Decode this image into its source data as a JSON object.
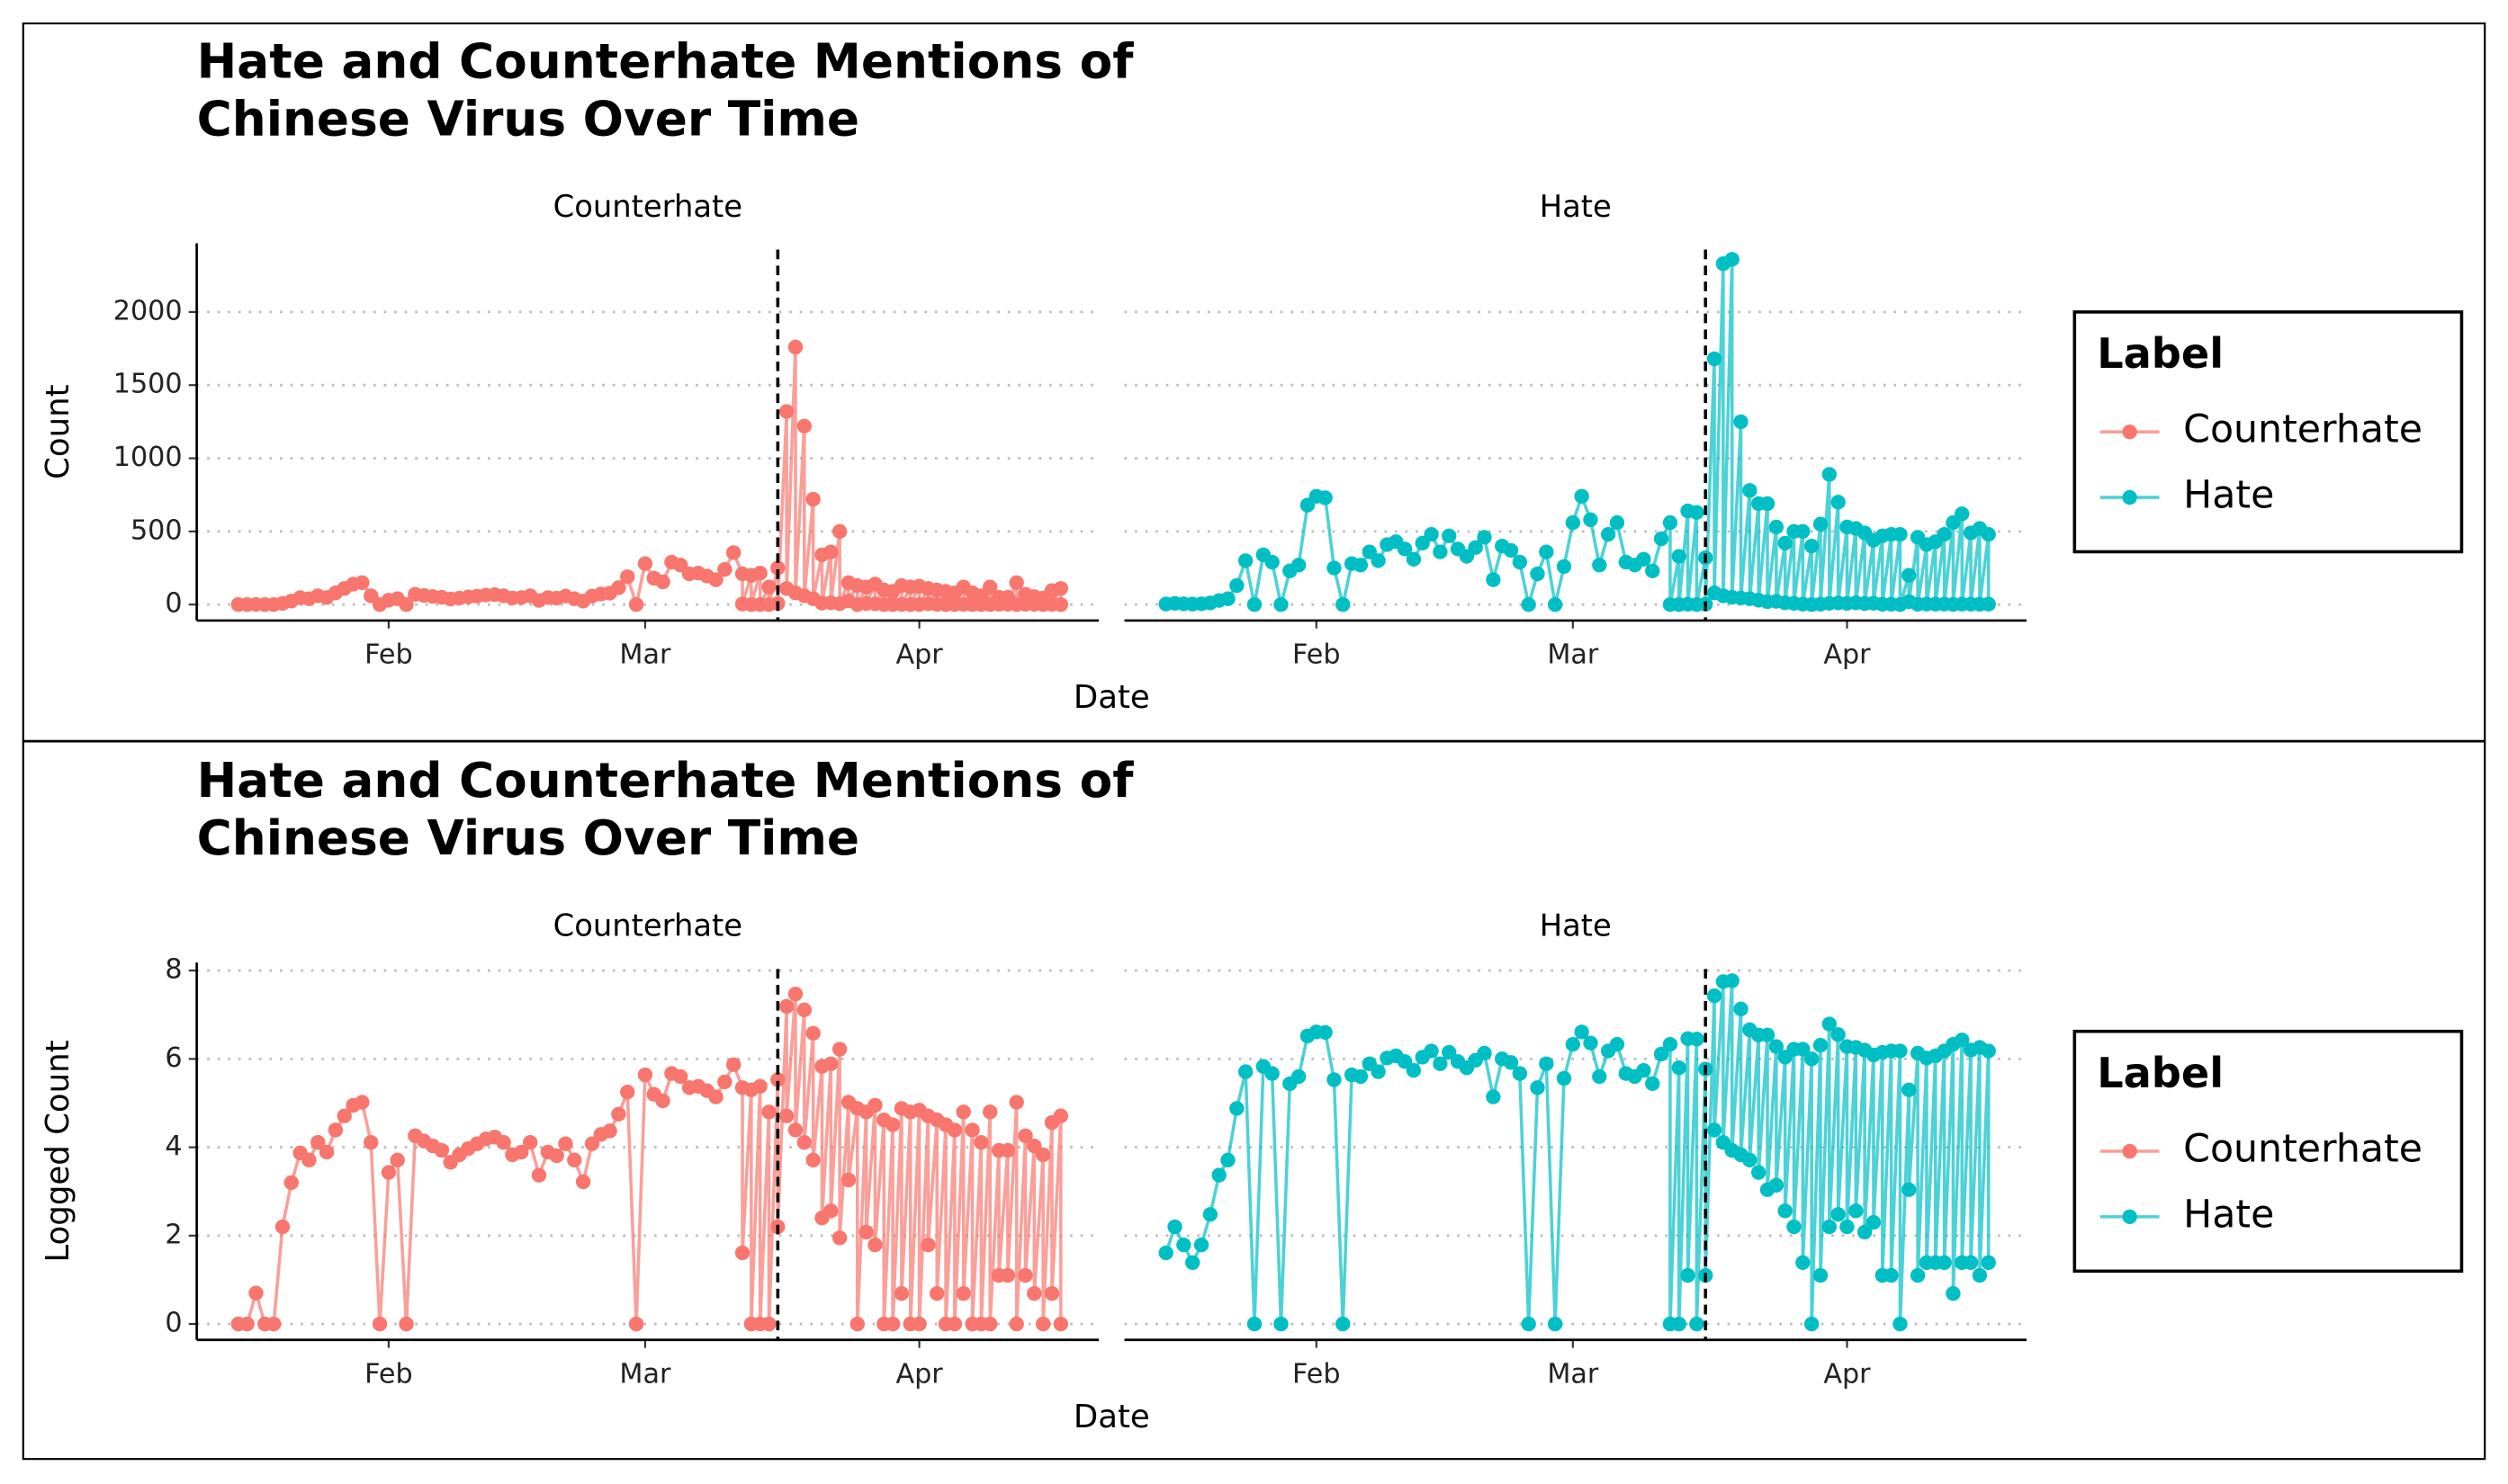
{
  "chart_data": [
    {
      "type": "line",
      "title": "Hate and Counterhate Mentions of\nChinese Virus Over Time",
      "xlabel": "Date",
      "ylabel": "Count",
      "legend_title": "Label",
      "legend": "right",
      "grid": true,
      "facet": true,
      "x": [
        15,
        16,
        17,
        18,
        19,
        20,
        21,
        22,
        23,
        24,
        25,
        26,
        27,
        28,
        29,
        30,
        31,
        32,
        33,
        34,
        35,
        36,
        37,
        38,
        39,
        40,
        41,
        42,
        43,
        44,
        45,
        46,
        47,
        48,
        49,
        50,
        51,
        52,
        53,
        54,
        55,
        56,
        57,
        58,
        59,
        60,
        61,
        62,
        63,
        64,
        65,
        66,
        67,
        68,
        69,
        70,
        71,
        72,
        72,
        73,
        73,
        74,
        74,
        75,
        75,
        76,
        76,
        77,
        77,
        78,
        78,
        79,
        79,
        80,
        80,
        81,
        81,
        82,
        82,
        83,
        83,
        84,
        84,
        85,
        85,
        86,
        86,
        87,
        87,
        88,
        88,
        89,
        89,
        90,
        90,
        91,
        91,
        92,
        92,
        93,
        93,
        94,
        94,
        95,
        95,
        96,
        96,
        97,
        97,
        98,
        98,
        99,
        99,
        100,
        100,
        101,
        101,
        102,
        102,
        103,
        103,
        104,
        104,
        105,
        105,
        106,
        106,
        107,
        107,
        108,
        108
      ],
      "series": [
        {
          "name": "Counterhate",
          "color": "#F8766D",
          "values": [
            0,
            0,
            1,
            0,
            0,
            8,
            24,
            47,
            40,
            60,
            48,
            80,
            110,
            140,
            150,
            60,
            0,
            30,
            40,
            0,
            70,
            62,
            55,
            50,
            38,
            45,
            52,
            58,
            65,
            68,
            60,
            45,
            48,
            60,
            28,
            48,
            44,
            58,
            40,
            24,
            58,
            72,
            78,
            115,
            190,
            0,
            280,
            180,
            155,
            290,
            270,
            210,
            215,
            195,
            170,
            240,
            355,
            210,
            4,
            200,
            0,
            215,
            0,
            120,
            0,
            250,
            8,
            1320,
            110,
            1760,
            80,
            1220,
            60,
            720,
            40,
            340,
            10,
            360,
            12,
            500,
            6,
            150,
            25,
            130,
            0,
            120,
            7,
            140,
            5,
            100,
            0,
            90,
            0,
            130,
            1,
            120,
            0,
            125,
            0,
            110,
            5,
            100,
            1,
            90,
            0,
            80,
            0,
            120,
            1,
            80,
            0,
            60,
            0,
            120,
            0,
            50,
            2,
            50,
            2,
            150,
            0,
            70,
            2,
            55,
            1,
            45,
            0,
            95,
            1,
            110,
            0
          ]
        },
        {
          "name": "Hate",
          "color": "#00BFC4",
          "values": [
            4,
            8,
            5,
            3,
            5,
            11,
            28,
            40,
            130,
            300,
            0,
            340,
            290,
            0,
            230,
            270,
            680,
            740,
            730,
            250,
            0,
            280,
            270,
            360,
            300,
            410,
            430,
            380,
            310,
            420,
            480,
            360,
            470,
            380,
            330,
            390,
            460,
            170,
            400,
            370,
            290,
            0,
            210,
            360,
            0,
            260,
            560,
            740,
            580,
            270,
            480,
            560,
            290,
            270,
            310,
            230,
            450,
            560,
            0,
            330,
            0,
            640,
            2,
            630,
            0,
            320,
            2,
            1680,
            80,
            2330,
            60,
            2360,
            50,
            1250,
            45,
            780,
            40,
            690,
            30,
            690,
            20,
            530,
            22,
            420,
            12,
            500,
            8,
            500,
            3,
            400,
            0,
            550,
            2,
            890,
            8,
            700,
            11,
            530,
            8,
            520,
            12,
            490,
            7,
            440,
            9,
            470,
            2,
            480,
            2,
            480,
            0,
            200,
            20,
            460,
            2,
            410,
            3,
            430,
            3,
            480,
            3,
            560,
            1,
            620,
            3,
            490,
            3,
            520,
            2,
            480,
            3
          ]
        }
      ],
      "xlim": [
        10.3,
        112.3
      ],
      "xticks": [
        {
          "value": 32,
          "label": "Feb"
        },
        {
          "value": 61,
          "label": "Mar"
        },
        {
          "value": 92,
          "label": "Apr"
        }
      ],
      "ylim": [
        -109,
        2470
      ],
      "yticks": [
        0,
        500,
        1000,
        1500,
        2000
      ],
      "vline": 76
    },
    {
      "type": "line",
      "title": "Hate and Counterhate Mentions of\nChinese Virus Over Time",
      "xlabel": "Date",
      "ylabel": "Logged Count",
      "legend_title": "Label",
      "legend": "right",
      "grid": true,
      "facet": true,
      "x": [
        15,
        16,
        17,
        18,
        19,
        20,
        21,
        22,
        23,
        24,
        25,
        26,
        27,
        28,
        29,
        30,
        31,
        32,
        33,
        34,
        35,
        36,
        37,
        38,
        39,
        40,
        41,
        42,
        43,
        44,
        45,
        46,
        47,
        48,
        49,
        50,
        51,
        52,
        53,
        54,
        55,
        56,
        57,
        58,
        59,
        60,
        61,
        62,
        63,
        64,
        65,
        66,
        67,
        68,
        69,
        70,
        71,
        72,
        72,
        73,
        73,
        74,
        74,
        75,
        75,
        76,
        76,
        77,
        77,
        78,
        78,
        79,
        79,
        80,
        80,
        81,
        81,
        82,
        82,
        83,
        83,
        84,
        84,
        85,
        85,
        86,
        86,
        87,
        87,
        88,
        88,
        89,
        89,
        90,
        90,
        91,
        91,
        92,
        92,
        93,
        93,
        94,
        94,
        95,
        95,
        96,
        96,
        97,
        97,
        98,
        98,
        99,
        99,
        100,
        100,
        101,
        101,
        102,
        102,
        103,
        103,
        104,
        104,
        105,
        105,
        106,
        106,
        107,
        107,
        108,
        108
      ],
      "series": [
        {
          "name": "Counterhate",
          "color": "#F8766D",
          "values": [
            0,
            0,
            0.7,
            0,
            0,
            2.2,
            3.2,
            3.87,
            3.71,
            4.11,
            3.89,
            4.39,
            4.71,
            4.95,
            5.02,
            4.11,
            0,
            3.43,
            3.71,
            0,
            4.26,
            4.14,
            4.03,
            3.93,
            3.66,
            3.83,
            3.97,
            4.08,
            4.19,
            4.23,
            4.11,
            3.83,
            3.89,
            4.11,
            3.37,
            3.89,
            3.81,
            4.08,
            3.71,
            3.22,
            4.08,
            4.29,
            4.37,
            4.75,
            5.25,
            0,
            5.64,
            5.2,
            5.05,
            5.67,
            5.6,
            5.35,
            5.38,
            5.28,
            5.14,
            5.48,
            5.87,
            5.35,
            1.61,
            5.3,
            0,
            5.38,
            0,
            4.8,
            0,
            5.53,
            2.2,
            7.19,
            4.71,
            7.47,
            4.39,
            7.11,
            4.11,
            6.58,
            3.71,
            5.83,
            2.4,
            5.89,
            2.56,
            6.22,
            1.95,
            5.02,
            3.26,
            4.88,
            0,
            4.8,
            2.08,
            4.95,
            1.79,
            4.62,
            0,
            4.51,
            0,
            4.88,
            0.69,
            4.8,
            0,
            4.84,
            0,
            4.71,
            1.79,
            4.62,
            0.69,
            4.51,
            0,
            4.39,
            0,
            4.8,
            0.69,
            4.39,
            0,
            4.11,
            0,
            4.8,
            0,
            3.93,
            1.1,
            3.93,
            1.1,
            5.02,
            0,
            4.26,
            1.1,
            4.03,
            0.69,
            3.83,
            0,
            4.56,
            0.69,
            4.71,
            0
          ]
        },
        {
          "name": "Hate",
          "color": "#00BFC4",
          "values": [
            1.61,
            2.2,
            1.79,
            1.39,
            1.79,
            2.48,
            3.37,
            3.71,
            4.88,
            5.71,
            0,
            5.83,
            5.67,
            0,
            5.44,
            5.6,
            6.52,
            6.61,
            6.6,
            5.53,
            0,
            5.64,
            5.6,
            5.89,
            5.71,
            6.02,
            6.07,
            5.94,
            5.74,
            6.04,
            6.18,
            5.89,
            6.15,
            5.94,
            5.8,
            5.97,
            6.13,
            5.14,
            6,
            5.92,
            5.67,
            0,
            5.35,
            5.89,
            0,
            5.56,
            6.33,
            6.61,
            6.36,
            5.6,
            6.18,
            6.33,
            5.67,
            5.6,
            5.74,
            5.44,
            6.11,
            6.33,
            0,
            5.8,
            0,
            6.46,
            1.1,
            6.45,
            0,
            5.77,
            1.1,
            7.43,
            4.39,
            7.75,
            4.11,
            7.77,
            3.93,
            7.13,
            3.83,
            6.66,
            3.71,
            6.54,
            3.43,
            6.54,
            3.04,
            6.28,
            3.14,
            6.04,
            2.56,
            6.22,
            2.2,
            6.22,
            1.39,
            6,
            0,
            6.31,
            1.1,
            6.79,
            2.2,
            6.55,
            2.48,
            6.28,
            2.2,
            6.26,
            2.56,
            6.2,
            2.08,
            6.09,
            2.3,
            6.15,
            1.1,
            6.18,
            1.1,
            6.18,
            0,
            5.3,
            3.04,
            6.13,
            1.1,
            6.02,
            1.39,
            6.07,
            1.39,
            6.18,
            1.39,
            6.33,
            0.69,
            6.43,
            1.39,
            6.2,
            1.39,
            6.26,
            1.1,
            6.18,
            1.39
          ]
        }
      ],
      "xlim": [
        10.3,
        112.3
      ],
      "xticks": [
        {
          "value": 32,
          "label": "Feb"
        },
        {
          "value": 61,
          "label": "Mar"
        },
        {
          "value": 92,
          "label": "Apr"
        }
      ],
      "ylim": [
        -0.36,
        8.18
      ],
      "yticks": [
        0,
        2,
        4,
        6,
        8
      ],
      "vline": 76
    }
  ]
}
